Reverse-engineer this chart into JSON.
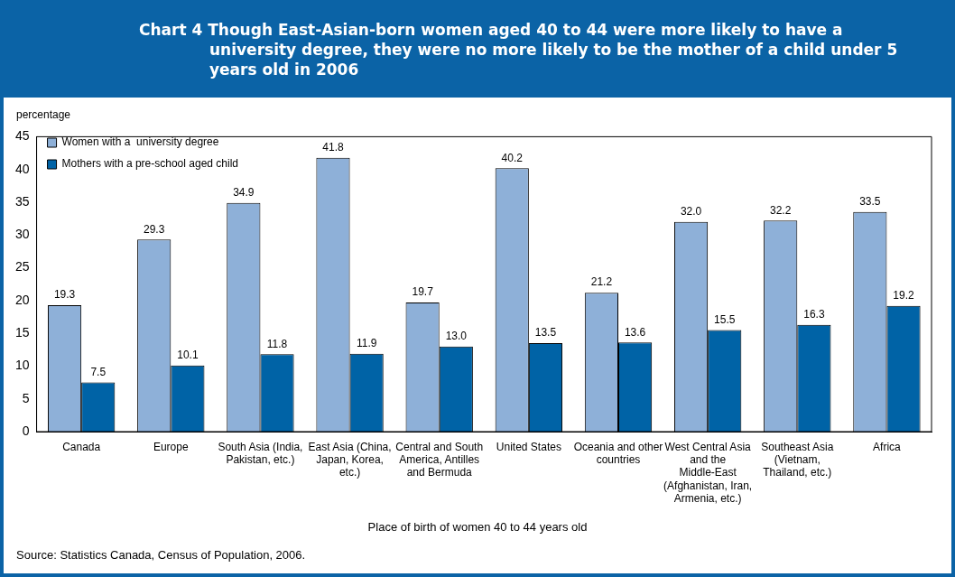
{
  "chart_data": {
    "type": "bar",
    "title": "Chart 4  Though East-Asian-born women aged 40 to 44 were more likely to have a university degree, they were no more likely to be the mother of a child under 5 years old in 2006",
    "xlabel": "Place of birth of women 40 to 44 years old",
    "ylabel": "percentage",
    "categories": [
      "Canada",
      "Europe",
      "South Asia (India, Pakistan, etc.)",
      "East Asia (China, Japan, Korea, etc.)",
      "Central and South America, Antilles and Bermuda",
      "United States",
      "Oceania and other countries",
      "West Central Asia and the Middle-East (Afghanistan, Iran, Armenia, etc.)",
      "Southeast Asia (Vietnam, Thailand, etc.)",
      "Africa"
    ],
    "series": [
      {
        "name": "Women with a  university degree",
        "color": "#8eb0d8",
        "values": [
          19.3,
          29.3,
          34.9,
          41.8,
          19.7,
          40.2,
          21.2,
          32.0,
          32.2,
          33.5
        ],
        "value_labels": [
          "19.3",
          "29.3",
          "34.9",
          "41.8",
          "19.7",
          "40.2",
          "21.2",
          "32.0",
          "32.2",
          "33.5"
        ]
      },
      {
        "name": "Mothers with a pre-school aged child",
        "color": "#0063a6",
        "values": [
          7.5,
          10.1,
          11.8,
          11.9,
          13.0,
          13.5,
          13.6,
          15.5,
          16.3,
          19.2
        ],
        "value_labels": [
          "7.5",
          "10.1",
          "11.8",
          "11.9",
          "13.0",
          "13.5",
          "13.6",
          "15.5",
          "16.3",
          "19.2"
        ]
      }
    ],
    "ylim": [
      0,
      45
    ],
    "yticks": [
      0,
      5,
      10,
      15,
      20,
      25,
      30,
      35,
      40,
      45
    ],
    "grid": false,
    "legend": "top left",
    "annotations": [
      "Source: Statistics Canada, Census of Population, 2006."
    ]
  }
}
